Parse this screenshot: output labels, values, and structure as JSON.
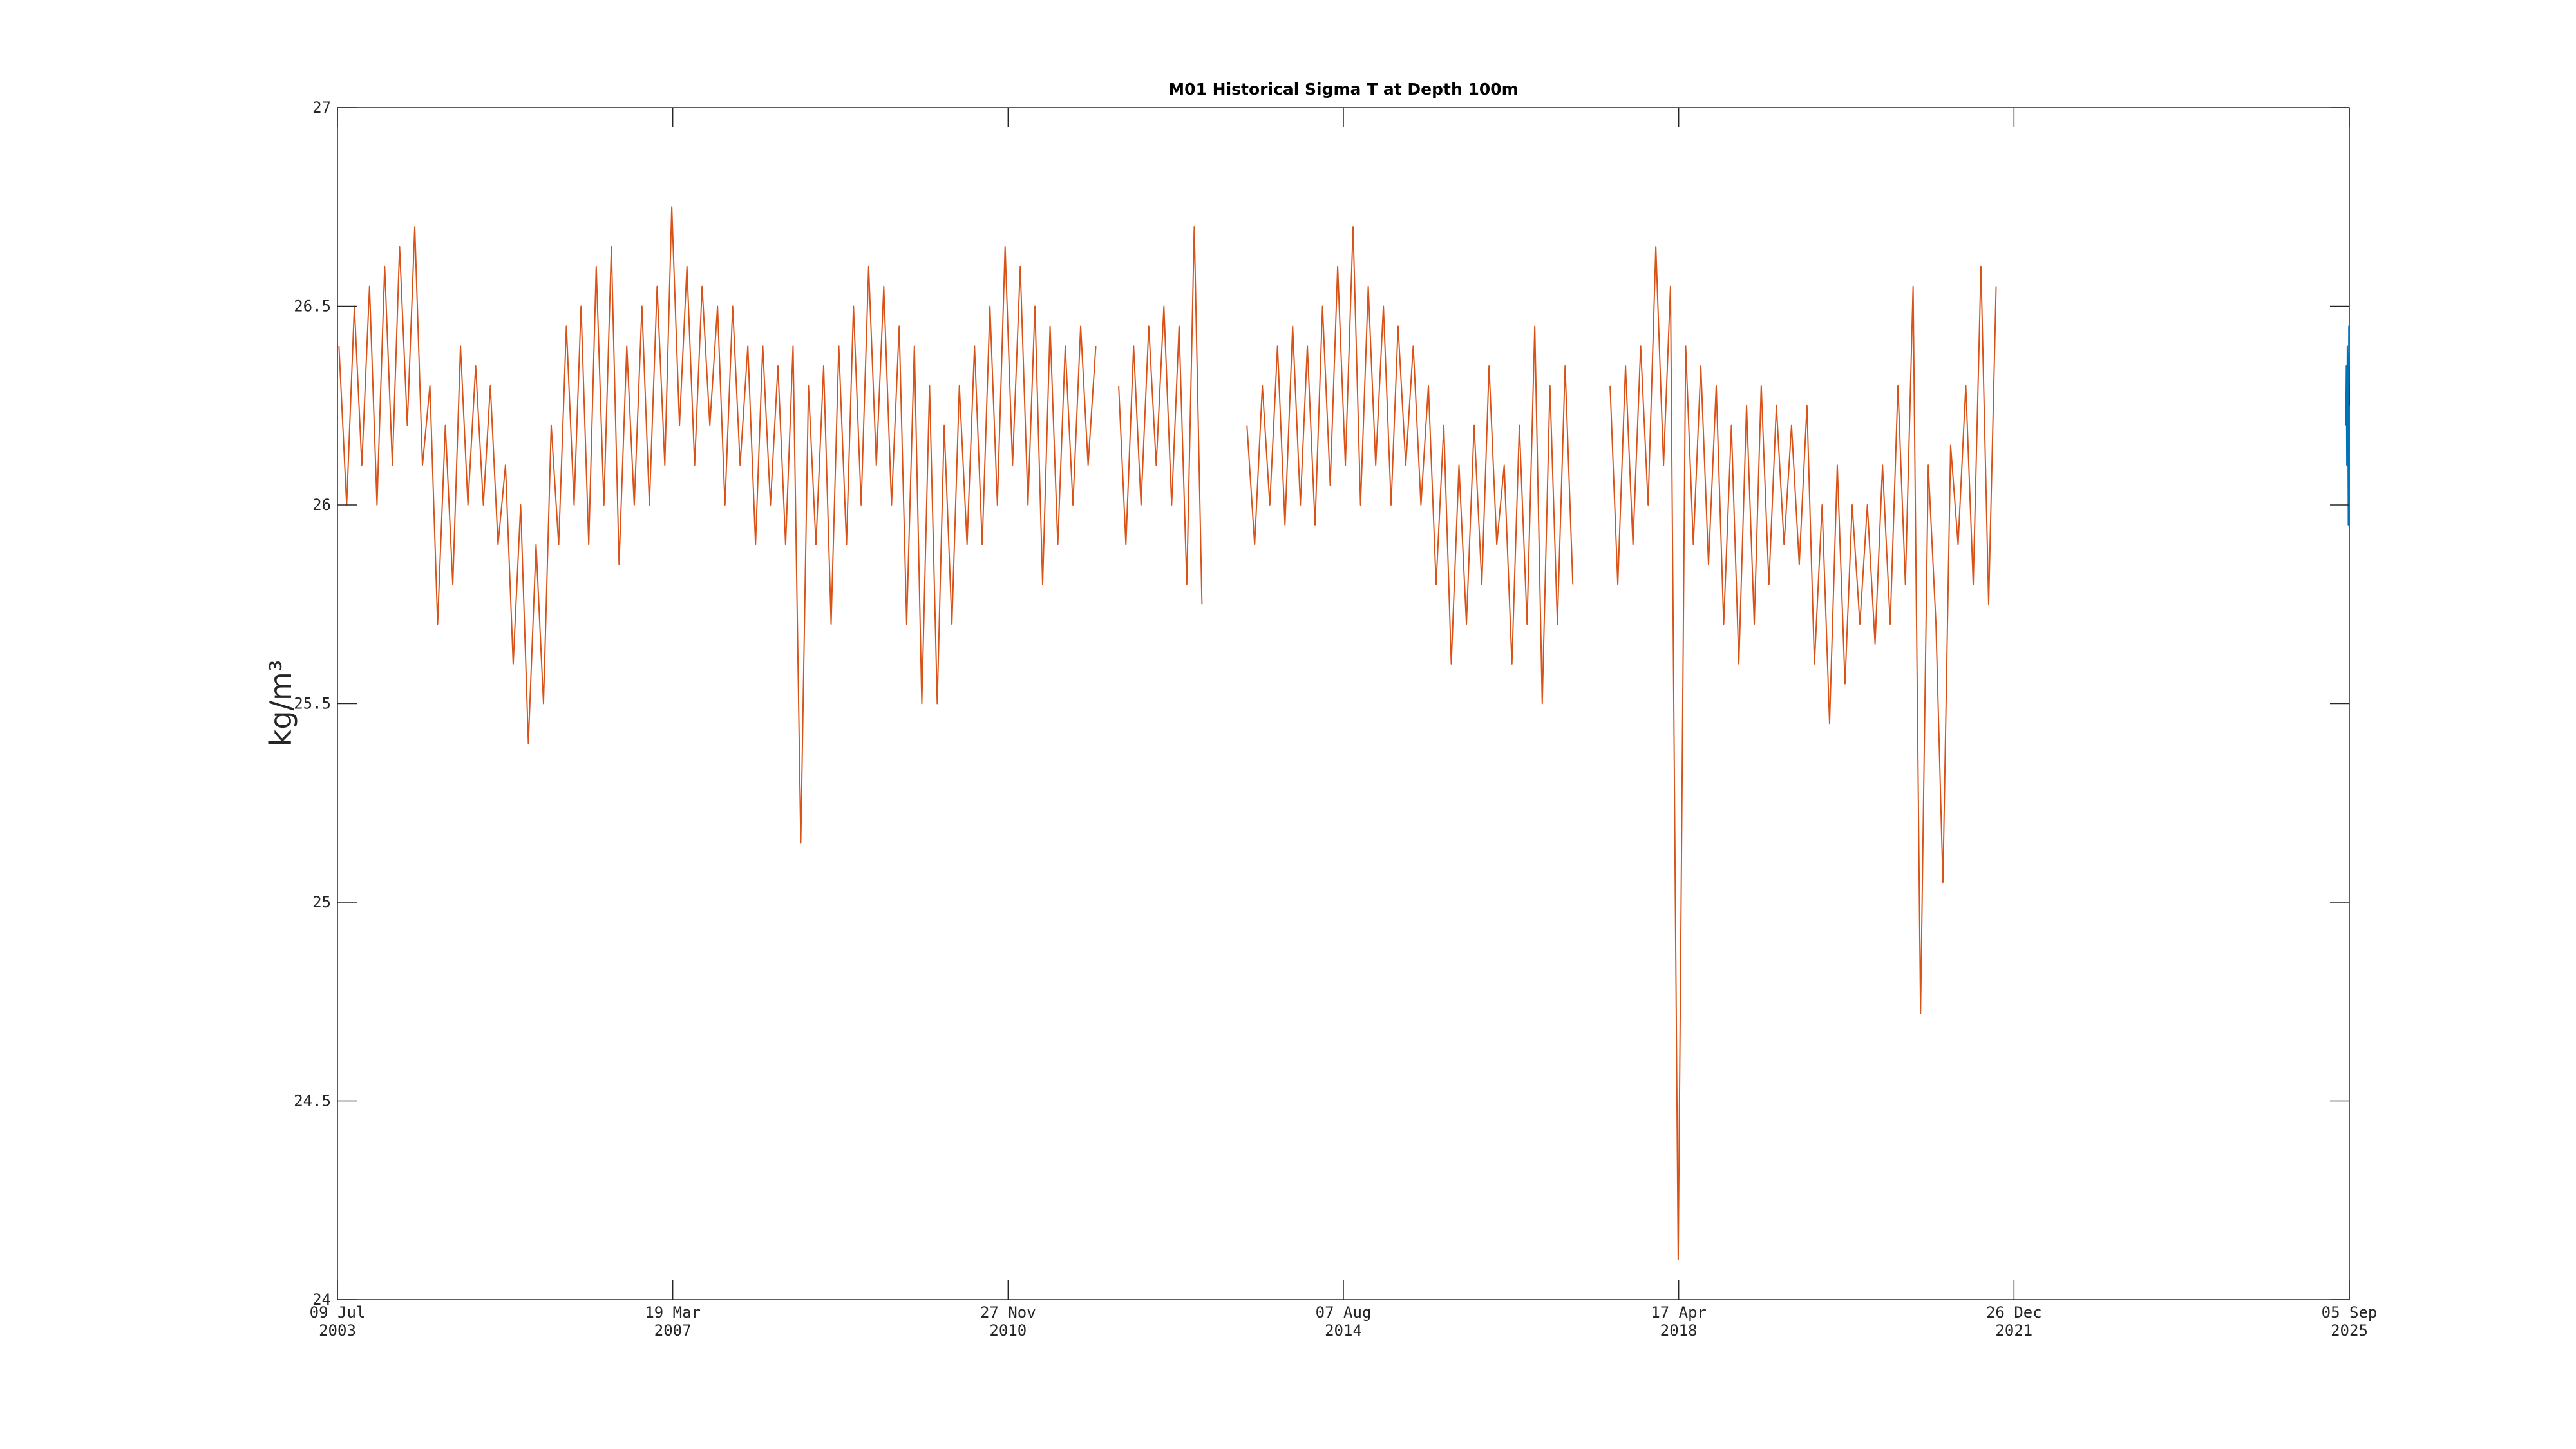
{
  "chart_data": {
    "type": "line",
    "title": "M01 Historical Sigma T at Depth 100m",
    "y_label": "kg/m³",
    "xlim": [
      "2003-07-09",
      "2025-09-05"
    ],
    "xticks": [
      {
        "value": "2003-07-09",
        "label": [
          "09 Jul",
          "2003"
        ]
      },
      {
        "value": "2007-03-19",
        "label": [
          "19 Mar",
          "2007"
        ]
      },
      {
        "value": "2010-11-27",
        "label": [
          "27 Nov",
          "2010"
        ]
      },
      {
        "value": "2014-08-07",
        "label": [
          "07 Aug",
          "2014"
        ]
      },
      {
        "value": "2018-04-17",
        "label": [
          "17 Apr",
          "2018"
        ]
      },
      {
        "value": "2021-12-26",
        "label": [
          "26 Dec",
          "2021"
        ]
      },
      {
        "value": "2025-09-05",
        "label": [
          "05 Sep",
          "2025"
        ]
      }
    ],
    "ylim": [
      24,
      27
    ],
    "yticks": [
      24,
      24.5,
      25,
      25.5,
      26,
      26.5,
      27
    ],
    "grid": false,
    "series": [
      {
        "color": "#d95319",
        "x": [
          "2003-07-15",
          "2003-08-15",
          "2003-09-15",
          "2003-10-15",
          "2003-11-15",
          "2003-12-15",
          "2004-01-15",
          "2004-02-15",
          "2004-03-15",
          "2004-04-15",
          "2004-05-15",
          "2004-06-15",
          "2004-07-15",
          "2004-08-15",
          "2004-09-15",
          "2004-10-15",
          "2004-11-15",
          "2004-12-15",
          "2005-01-15",
          "2005-02-15",
          "2005-03-15",
          "2005-04-15",
          "2005-05-15",
          "2005-06-15",
          "2005-07-15",
          "2005-08-15",
          "2005-09-15",
          "2005-10-15",
          "2005-11-15",
          "2005-12-15",
          "2006-01-15",
          "2006-02-15",
          "2006-03-15",
          "2006-04-15",
          "2006-05-15",
          "2006-06-15",
          "2006-07-15",
          "2006-08-15",
          "2006-09-15",
          "2006-10-15",
          "2006-11-15",
          "2006-12-15",
          "2007-01-15",
          "2007-02-15",
          "2007-03-15",
          "2007-04-15",
          "2007-05-15",
          "2007-06-15",
          "2007-07-15",
          "2007-08-15",
          "2007-09-15",
          "2007-10-15",
          "2007-11-15",
          "2007-12-15",
          "2008-01-15",
          "2008-02-15",
          "2008-03-15",
          "2008-04-15",
          "2008-05-15",
          "2008-06-15",
          "2008-07-15",
          "2008-08-15",
          "2008-09-15",
          "2008-10-15",
          "2008-11-15",
          "2008-12-15",
          "2009-01-15",
          "2009-02-15",
          "2009-03-15",
          "2009-04-15",
          "2009-05-15",
          "2009-06-15",
          "2009-07-15",
          "2009-08-15",
          "2009-09-15",
          "2009-10-15",
          "2009-11-15",
          "2009-12-15",
          "2010-01-15",
          "2010-02-15",
          "2010-03-15",
          "2010-04-15",
          "2010-05-15",
          "2010-06-15",
          "2010-07-15",
          "2010-08-15",
          "2010-09-15",
          "2010-10-15",
          "2010-11-15",
          "2010-12-15",
          "2011-01-15",
          "2011-02-15",
          "2011-03-15",
          "2011-04-15",
          "2011-05-15",
          "2011-06-15",
          "2011-07-15",
          "2011-08-15",
          "2011-09-15",
          "2011-10-15",
          "2011-11-15",
          "2011-12-31",
          "2012-02-15",
          "2012-03-15",
          "2012-04-15",
          "2012-05-15",
          "2012-06-15",
          "2012-07-15",
          "2012-08-15",
          "2012-09-15",
          "2012-10-15",
          "2012-11-15",
          "2012-12-15",
          "2013-01-15",
          "2013-04-15",
          "2013-07-15",
          "2013-08-15",
          "2013-09-15",
          "2013-10-15",
          "2013-11-15",
          "2013-12-15",
          "2014-01-15",
          "2014-02-15",
          "2014-03-15",
          "2014-04-15",
          "2014-05-15",
          "2014-06-15",
          "2014-07-15",
          "2014-08-15",
          "2014-09-15",
          "2014-10-15",
          "2014-11-15",
          "2014-12-15",
          "2015-01-15",
          "2015-02-15",
          "2015-03-15",
          "2015-04-15",
          "2015-05-15",
          "2015-06-15",
          "2015-07-15",
          "2015-08-15",
          "2015-09-15",
          "2015-10-15",
          "2015-11-15",
          "2015-12-15",
          "2016-01-15",
          "2016-02-15",
          "2016-03-15",
          "2016-04-15",
          "2016-05-15",
          "2016-06-15",
          "2016-07-15",
          "2016-08-15",
          "2016-09-15",
          "2016-10-15",
          "2016-11-15",
          "2016-12-15",
          "2017-01-15",
          "2017-02-15",
          "2017-04-15",
          "2017-07-15",
          "2017-08-15",
          "2017-09-15",
          "2017-10-15",
          "2017-11-15",
          "2017-12-15",
          "2018-01-15",
          "2018-02-15",
          "2018-03-15",
          "2018-04-15",
          "2018-05-15",
          "2018-06-15",
          "2018-07-15",
          "2018-08-15",
          "2018-09-15",
          "2018-10-15",
          "2018-11-15",
          "2018-12-15",
          "2019-01-15",
          "2019-02-15",
          "2019-03-15",
          "2019-04-15",
          "2019-05-15",
          "2019-06-15",
          "2019-07-15",
          "2019-08-15",
          "2019-09-15",
          "2019-10-15",
          "2019-11-15",
          "2019-12-15",
          "2020-01-15",
          "2020-02-15",
          "2020-03-15",
          "2020-04-15",
          "2020-05-15",
          "2020-06-15",
          "2020-07-15",
          "2020-08-15",
          "2020-09-15",
          "2020-10-15",
          "2020-11-15",
          "2020-12-15",
          "2021-01-15",
          "2021-02-15",
          "2021-03-15",
          "2021-04-15",
          "2021-05-15",
          "2021-06-15",
          "2021-07-15",
          "2021-08-15",
          "2021-09-15",
          "2021-10-15"
        ],
        "values": [
          26.4,
          26.0,
          26.5,
          26.1,
          26.55,
          26.0,
          26.6,
          26.1,
          26.65,
          26.2,
          26.7,
          26.1,
          26.3,
          25.7,
          26.2,
          25.8,
          26.4,
          26.0,
          26.35,
          26.0,
          26.3,
          25.9,
          26.1,
          25.6,
          26.0,
          25.4,
          25.9,
          25.5,
          26.2,
          25.9,
          26.45,
          26.0,
          26.5,
          25.9,
          26.6,
          26.0,
          26.65,
          25.85,
          26.4,
          26.0,
          26.5,
          26.0,
          26.55,
          26.1,
          26.75,
          26.2,
          26.6,
          26.1,
          26.55,
          26.2,
          26.5,
          26.0,
          26.5,
          26.1,
          26.4,
          25.9,
          26.4,
          26.0,
          26.35,
          25.9,
          26.4,
          25.15,
          26.3,
          25.9,
          26.35,
          25.7,
          26.4,
          25.9,
          26.5,
          26.0,
          26.6,
          26.1,
          26.55,
          26.0,
          26.45,
          25.7,
          26.4,
          25.5,
          26.3,
          25.5,
          26.2,
          25.7,
          26.3,
          25.9,
          26.4,
          25.9,
          26.5,
          26.0,
          26.65,
          26.1,
          26.6,
          26.0,
          26.5,
          25.8,
          26.45,
          25.9,
          26.4,
          26.0,
          26.45,
          26.1,
          26.4,
          null,
          26.3,
          25.9,
          26.4,
          26.0,
          26.45,
          26.1,
          26.5,
          26.0,
          26.45,
          25.8,
          26.7,
          25.75,
          null,
          26.2,
          25.9,
          26.3,
          26.0,
          26.4,
          25.95,
          26.45,
          26.0,
          26.4,
          25.95,
          26.5,
          26.05,
          26.6,
          26.1,
          26.7,
          26.0,
          26.55,
          26.1,
          26.5,
          26.0,
          26.45,
          26.1,
          26.4,
          26.0,
          26.3,
          25.8,
          26.2,
          25.6,
          26.1,
          25.7,
          26.2,
          25.8,
          26.35,
          25.9,
          26.1,
          25.6,
          26.2,
          25.7,
          26.45,
          25.5,
          26.3,
          25.7,
          26.35,
          25.8,
          null,
          26.3,
          25.8,
          26.35,
          25.9,
          26.4,
          26.0,
          26.65,
          26.1,
          26.55,
          24.1,
          26.4,
          25.9,
          26.35,
          25.85,
          26.3,
          25.7,
          26.2,
          25.6,
          26.25,
          25.7,
          26.3,
          25.8,
          26.25,
          25.9,
          26.2,
          25.85,
          26.25,
          25.6,
          26.0,
          25.45,
          26.1,
          25.55,
          26.0,
          25.7,
          26.0,
          25.65,
          26.1,
          25.7,
          26.3,
          25.8,
          26.55,
          24.72,
          26.1,
          25.7,
          25.05,
          26.15,
          25.9,
          26.3,
          25.8,
          26.6,
          25.75,
          26.55
        ]
      },
      {
        "color": "#0072bd",
        "x": [
          "2025-08-22",
          "2025-08-24",
          "2025-08-26",
          "2025-08-28",
          "2025-08-30",
          "2025-09-01",
          "2025-09-03",
          "2025-09-05"
        ],
        "values": [
          26.2,
          26.35,
          26.1,
          26.4,
          26.3,
          25.95,
          26.45,
          26.25
        ]
      }
    ]
  }
}
